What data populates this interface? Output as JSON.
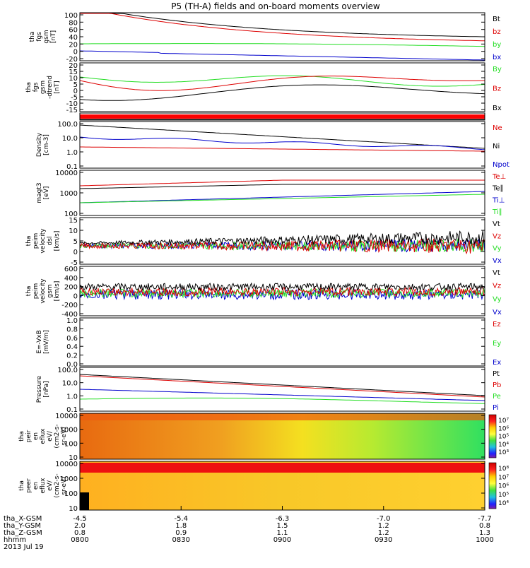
{
  "title": "P5 (TH-A) fields and on-board moments overview",
  "colors": {
    "black": "#000000",
    "red": "#dd0000",
    "green": "#22dd22",
    "blue": "#0000cc",
    "flag": "#ff0000"
  },
  "panels": [
    {
      "id": "fgs-mag",
      "ylabel": [
        "tha",
        "fgs",
        "gsm",
        "[nT]"
      ],
      "yticks": [
        "100",
        "80",
        "60",
        "40",
        "20",
        "0",
        "-20"
      ],
      "ylim": [
        -20,
        100
      ],
      "legend": [
        [
          "Bt",
          "black"
        ],
        [
          "bz",
          "red"
        ],
        [
          "by",
          "green"
        ],
        [
          "bx",
          "blue"
        ]
      ]
    },
    {
      "id": "fgs-dtrend",
      "ylabel": [
        "tha",
        "fgs",
        "gsm",
        "-dtrend",
        "[nT]"
      ],
      "yticks": [
        "20",
        "15",
        "10",
        "5",
        "0",
        "-5",
        "-10",
        "-15"
      ],
      "ylim": [
        -18,
        20
      ],
      "legend": [
        [
          "By",
          "green"
        ],
        [
          "Bz",
          "red"
        ],
        [
          "Bx",
          "black"
        ]
      ]
    },
    {
      "id": "flags",
      "ylabel": [],
      "yticks": [],
      "legend": []
    },
    {
      "id": "density",
      "ylabel": [
        "Density",
        "[cm-3]"
      ],
      "yticks": [
        "100.0",
        "10.0",
        "1.0",
        "0.1"
      ],
      "ylim": [
        0.1,
        100
      ],
      "log": true,
      "legend": [
        [
          "Ne",
          "red"
        ],
        [
          "Ni",
          "black"
        ],
        [
          "Npot",
          "blue"
        ]
      ]
    },
    {
      "id": "temperature",
      "ylabel": [
        "magt3",
        "[eV]"
      ],
      "yticks": [
        "10000",
        "1000",
        "100"
      ],
      "ylim": [
        100,
        10000
      ],
      "log": true,
      "legend": [
        [
          "Te⊥",
          "red"
        ],
        [
          "Te∥",
          "black"
        ],
        [
          "Ti⊥",
          "blue"
        ],
        [
          "Ti∥",
          "green"
        ]
      ]
    },
    {
      "id": "velocity-dsl",
      "ylabel": [
        "tha",
        "peim",
        "velocity",
        "dsl",
        "[km/s]"
      ],
      "yticks": [
        "15",
        "10",
        "5",
        "0",
        "-5"
      ],
      "ylim": [
        -7,
        15
      ],
      "legend": [
        [
          "Vt",
          "black"
        ],
        [
          "Vz",
          "red"
        ],
        [
          "Vy",
          "green"
        ],
        [
          "Vx",
          "blue"
        ]
      ]
    },
    {
      "id": "velocity-gsm",
      "ylabel": [
        "tha",
        "peim",
        "velocity",
        "gsm",
        "[km/s]"
      ],
      "yticks": [
        "600",
        "400",
        "200",
        "0",
        "-200",
        "-400"
      ],
      "ylim": [
        -450,
        650
      ],
      "legend": [
        [
          "Vt",
          "black"
        ],
        [
          "Vz",
          "red"
        ],
        [
          "Vy",
          "green"
        ],
        [
          "Vx",
          "blue"
        ]
      ]
    },
    {
      "id": "efield",
      "ylabel": [
        "E=-VxB",
        "[mV/m]"
      ],
      "yticks": [
        "1.0",
        "0.8",
        "0.6",
        "0.4",
        "0.2",
        "0.0"
      ],
      "ylim": [
        0,
        1
      ],
      "legend": [
        [
          "Ez",
          "red"
        ],
        [
          "Ey",
          "green"
        ],
        [
          "Ex",
          "blue"
        ]
      ]
    },
    {
      "id": "pressure",
      "ylabel": [
        "Pressure",
        "[nPa]"
      ],
      "yticks": [
        "100.0",
        "10.0",
        "1.0",
        "0.1"
      ],
      "ylim": [
        0.1,
        100
      ],
      "log": true,
      "legend": [
        [
          "Pt",
          "black"
        ],
        [
          "Pb",
          "red"
        ],
        [
          "Pe",
          "green"
        ],
        [
          "Pi",
          "blue"
        ]
      ]
    },
    {
      "id": "ion-spec",
      "ylabel": [
        "tha",
        "peir",
        "en",
        "eflux",
        "eV/",
        "(cm2-s-",
        "sr-eV)"
      ],
      "yticks": [
        "10000",
        "1000",
        "100",
        "10"
      ],
      "colorbar": [
        "10⁷",
        "10⁶",
        "10⁵",
        "10⁴",
        "10³"
      ]
    },
    {
      "id": "elec-spec",
      "ylabel": [
        "tha",
        "peer",
        "en",
        "eflux",
        "eV/",
        "(cm2-s-",
        "sr-eV)"
      ],
      "yticks": [
        "10000",
        "1000",
        "100",
        "10"
      ],
      "colorbar": [
        "10⁸",
        "10⁷",
        "10⁶",
        "10⁵",
        "10⁴"
      ]
    }
  ],
  "xaxis": {
    "rows": [
      {
        "label": "tha_X-GSM",
        "values": [
          "-4.5",
          "-5.4",
          "-6.3",
          "-7.0",
          "-7.7"
        ]
      },
      {
        "label": "tha_Y-GSM",
        "values": [
          "2.0",
          "1.8",
          "1.5",
          "1.2",
          "0.8"
        ]
      },
      {
        "label": "tha_Z-GSM",
        "values": [
          "0.8",
          "0.9",
          "1.1",
          "1.2",
          "1.3"
        ]
      },
      {
        "label": "hhmm",
        "values": [
          "0800",
          "0830",
          "0900",
          "0930",
          "1000"
        ]
      }
    ],
    "date": "2013 Jul 19"
  },
  "chart_data": {
    "type": "line",
    "title": "P5 (TH-A) fields and on-board moments overview",
    "x": [
      "0800",
      "0830",
      "0900",
      "0930",
      "1000"
    ],
    "series": [
      {
        "name": "Bt",
        "values": [
          130,
          82,
          62,
          50,
          42
        ]
      },
      {
        "name": "bz",
        "values": [
          125,
          80,
          58,
          45,
          37
        ]
      },
      {
        "name": "by",
        "values": [
          18,
          22,
          16,
          10,
          5
        ]
      },
      {
        "name": "bx",
        "values": [
          0,
          -3,
          -10,
          -15,
          -16
        ]
      },
      {
        "name": "Ni",
        "values": [
          80,
          30,
          10,
          4,
          2
        ]
      },
      {
        "name": "Npot",
        "values": [
          30,
          12,
          6,
          3,
          2
        ]
      },
      {
        "name": "Ne",
        "values": [
          3,
          2,
          1.5,
          1.2,
          1
        ]
      },
      {
        "name": "Pt",
        "values": [
          25,
          15,
          6,
          3,
          1.5
        ]
      },
      {
        "name": "Pb",
        "values": [
          20,
          12,
          5,
          2.5,
          1.1
        ]
      },
      {
        "name": "Pe",
        "values": [
          1,
          0.9,
          0.8,
          0.5,
          0.3
        ]
      },
      {
        "name": "Pi",
        "values": [
          2.5,
          1.2,
          0.8,
          0.5,
          0.4
        ]
      }
    ]
  }
}
